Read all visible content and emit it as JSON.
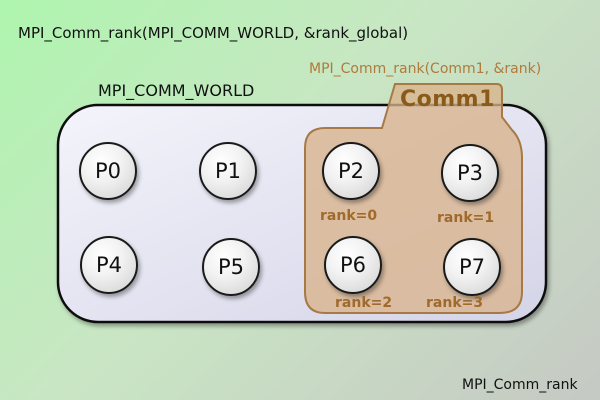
{
  "top_call": "MPI_Comm_rank(MPI_COMM_WORLD, &rank_global)",
  "world": {
    "label": "MPI_COMM_WORLD"
  },
  "comm1": {
    "call": "MPI_Comm_rank(Comm1, &rank)",
    "tab_label": "Comm1",
    "ranks": [
      "rank=0",
      "rank=1",
      "rank=2",
      "rank=3"
    ]
  },
  "processes": [
    "P0",
    "P1",
    "P2",
    "P3",
    "P4",
    "P5",
    "P6",
    "P7"
  ],
  "footer_label": "MPI_Comm_rank",
  "colors": {
    "world_fill": "#e4e4f4",
    "comm1_fill": "#d9b48c",
    "comm1_stroke": "#a77a45",
    "accent_text": "#a06a2c"
  }
}
